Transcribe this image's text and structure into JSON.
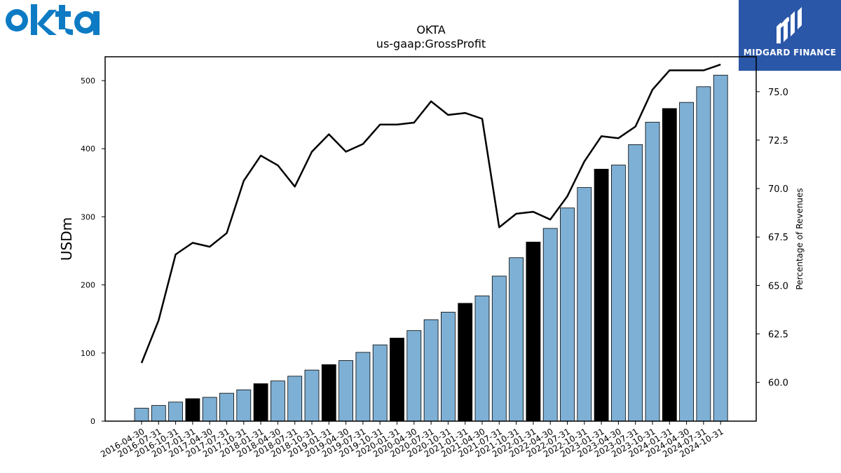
{
  "logos": {
    "left": "okta",
    "right": "MIDGARD FINANCE"
  },
  "colors": {
    "bar_regular": "#7eb0d5",
    "bar_highlight": "#000000",
    "line": "#000000",
    "okta_blue": "#0d7bc4",
    "midgard_bg": "#2b57a8"
  },
  "chart_data": {
    "type": "bar",
    "title": "OKTA",
    "subtitle": "us-gaap:GrossProfit",
    "ylabel": "USDm",
    "y2label": "Percentage of Revenues",
    "ylim": [
      0,
      535
    ],
    "y2lim": [
      58.0,
      76.8
    ],
    "yticks": [
      0,
      100,
      200,
      300,
      400,
      500
    ],
    "y2ticks": [
      "60.0",
      "62.5",
      "65.0",
      "67.5",
      "70.0",
      "72.5",
      "75.0"
    ],
    "grid": false,
    "categories": [
      "2016-04-30",
      "2016-07-31",
      "2016-10-31",
      "2017-01-31",
      "2017-04-30",
      "2017-07-31",
      "2017-10-31",
      "2018-01-31",
      "2018-04-30",
      "2018-07-31",
      "2018-10-31",
      "2019-01-31",
      "2019-04-30",
      "2019-07-31",
      "2019-10-31",
      "2020-01-31",
      "2020-04-30",
      "2020-07-31",
      "2020-10-31",
      "2021-01-31",
      "2021-04-30",
      "2021-07-31",
      "2021-10-31",
      "2022-01-31",
      "2022-04-30",
      "2022-07-31",
      "2022-10-31",
      "2023-01-31",
      "2023-04-30",
      "2023-07-31",
      "2023-10-31",
      "2024-01-31",
      "2024-04-30",
      "2024-07-31",
      "2024-10-31"
    ],
    "series": [
      {
        "type": "bar",
        "axis": "left",
        "values": [
          19,
          23,
          28,
          33,
          35,
          41,
          46,
          55,
          59,
          66,
          75,
          83,
          89,
          101,
          112,
          122,
          133,
          149,
          160,
          173,
          184,
          213,
          240,
          263,
          283,
          313,
          343,
          370,
          376,
          406,
          439,
          459,
          468,
          491,
          508
        ],
        "highlight_indices": [
          3,
          7,
          11,
          15,
          19,
          23,
          27,
          31
        ]
      },
      {
        "type": "line",
        "axis": "right",
        "values": [
          61.0,
          63.2,
          66.6,
          67.2,
          67.0,
          67.7,
          70.4,
          71.7,
          71.2,
          70.1,
          71.9,
          72.8,
          71.9,
          72.3,
          73.3,
          73.3,
          73.4,
          74.5,
          73.8,
          73.9,
          73.6,
          68.0,
          68.7,
          68.8,
          68.4,
          69.6,
          71.4,
          72.7,
          72.6,
          73.2,
          75.1,
          76.1,
          76.1,
          76.1,
          76.4
        ]
      }
    ]
  }
}
